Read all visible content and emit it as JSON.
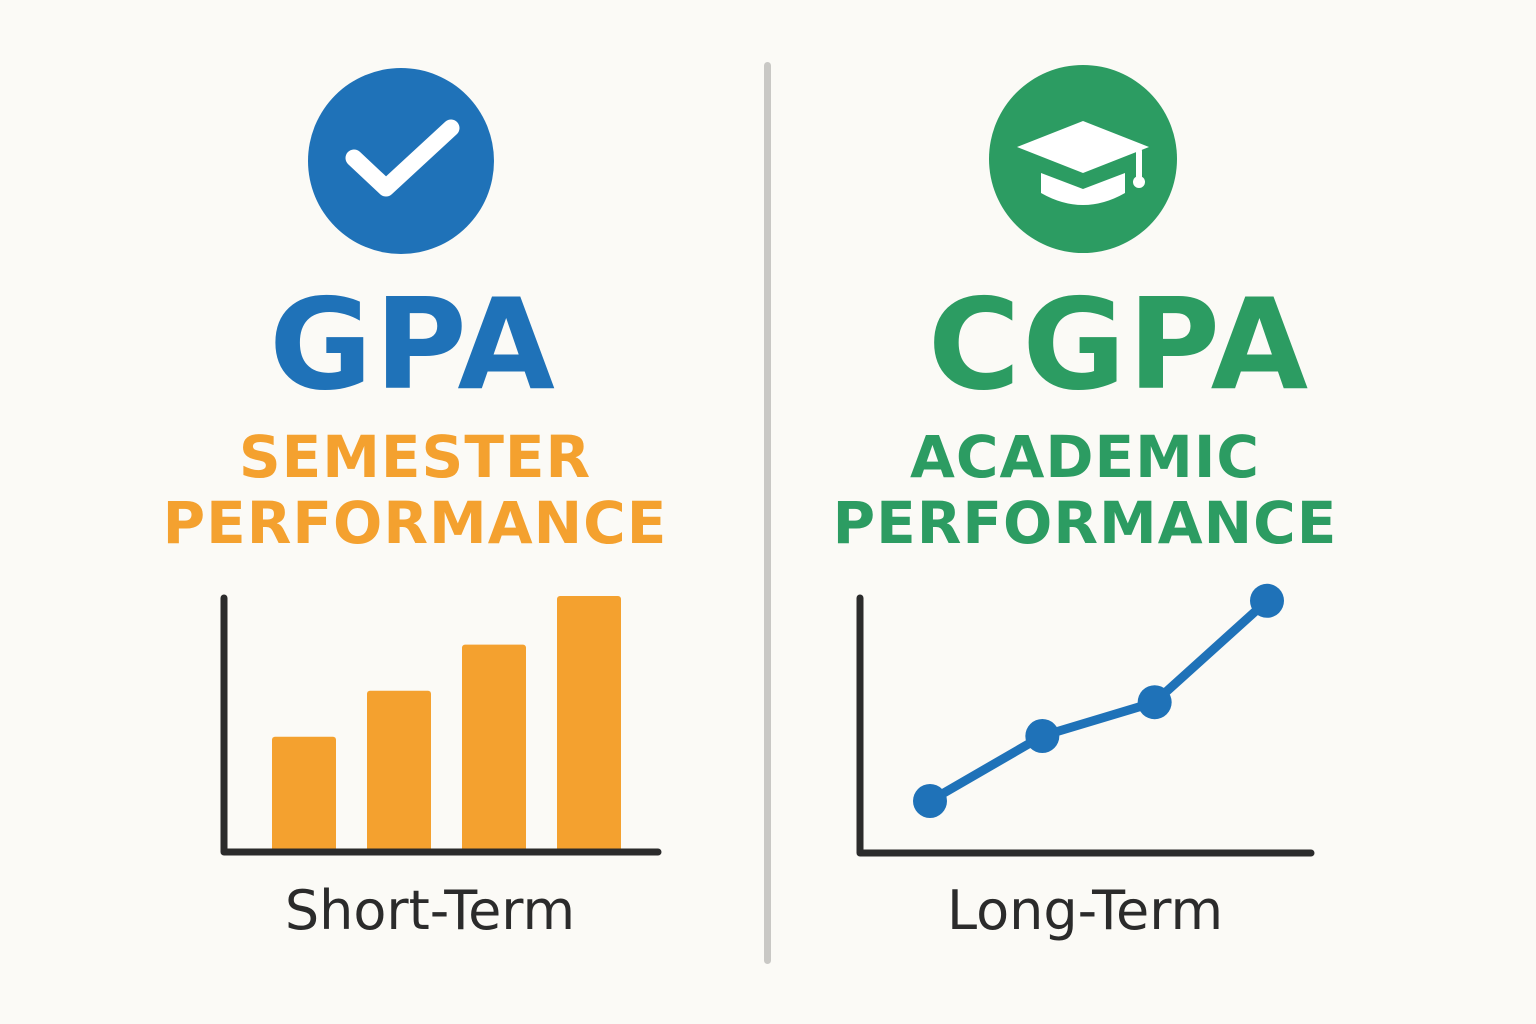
{
  "colors": {
    "background": "#fbfaf6",
    "gpa_blue": "#1f72b8",
    "cgpa_green": "#2c9c62",
    "semester_orange": "#f4a12f",
    "line_blue": "#1f72b8",
    "axis": "#2b2b2b",
    "divider": "#c9c8c5"
  },
  "gpa": {
    "icon": "checkmark-icon",
    "title": "GPA",
    "subtitle_line1": "SEMESTER",
    "subtitle_line2": "PERFORMANCE",
    "caption": "Short-Term"
  },
  "cgpa": {
    "icon": "graduation-cap-icon",
    "title": "CGPA",
    "subtitle_line1": "ACADEMIC",
    "subtitle_line2": "PERFORMANCE",
    "caption": "Long-Term"
  },
  "chart_data": [
    {
      "type": "bar",
      "values": [
        0.45,
        0.63,
        0.81,
        1.0
      ],
      "ylim": [
        0,
        1.0
      ],
      "grid": false
    },
    {
      "type": "line",
      "x": [
        1,
        2,
        3,
        4
      ],
      "values": [
        0.2,
        0.45,
        0.58,
        0.97
      ],
      "ylim": [
        0,
        1.0
      ],
      "grid": false
    }
  ]
}
